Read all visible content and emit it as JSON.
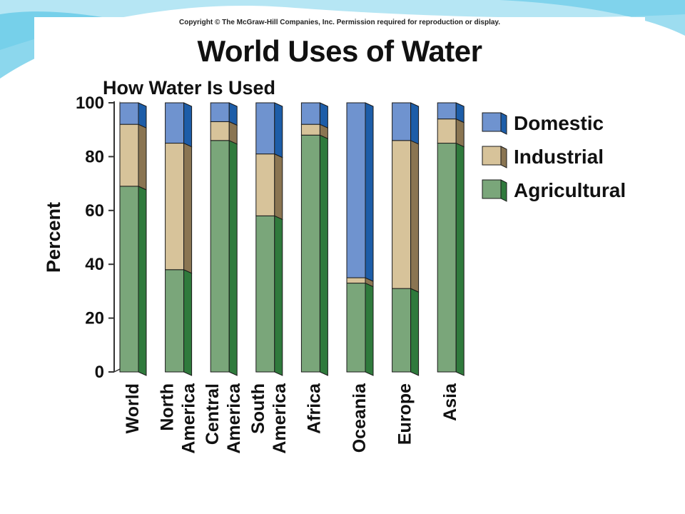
{
  "copyright": "Copyright © The McGraw-Hill Companies, Inc. Permission required for reproduction or display.",
  "colors": {
    "slide_accent": "#5bc6e6",
    "slide_accent_light": "#a9e2f2"
  },
  "chart_data": {
    "type": "bar",
    "stacked": true,
    "three_d": true,
    "title": "World Uses of Water",
    "subtitle": "How Water Is Used",
    "xlabel": "",
    "ylabel": "Percent",
    "ylim": [
      0,
      100
    ],
    "yticks": [
      0,
      20,
      40,
      60,
      80,
      100
    ],
    "grid": false,
    "legend_position": "right",
    "categories": [
      [
        "World"
      ],
      [
        "North",
        "America"
      ],
      [
        "Central",
        "America"
      ],
      [
        "South",
        "America"
      ],
      [
        "Africa"
      ],
      [
        "Oceania"
      ],
      [
        "Europe"
      ],
      [
        "Asia"
      ]
    ],
    "series": [
      {
        "name": "Agricultural",
        "color": "#7aa67a",
        "side_color": "#2f7a3c",
        "top_color": "#a8c8a0",
        "values": [
          69,
          38,
          86,
          58,
          88,
          33,
          31,
          85
        ]
      },
      {
        "name": "Industrial",
        "color": "#d7c39a",
        "side_color": "#8a7552",
        "top_color": "#e8dbbd",
        "values": [
          23,
          47,
          7,
          23,
          4,
          2,
          55,
          9
        ]
      },
      {
        "name": "Domestic",
        "color": "#6f93cf",
        "side_color": "#1d5da8",
        "top_color": "#a9c0e6",
        "values": [
          8,
          15,
          7,
          19,
          8,
          65,
          14,
          6
        ]
      }
    ],
    "legend_order": [
      "Domestic",
      "Industrial",
      "Agricultural"
    ]
  }
}
